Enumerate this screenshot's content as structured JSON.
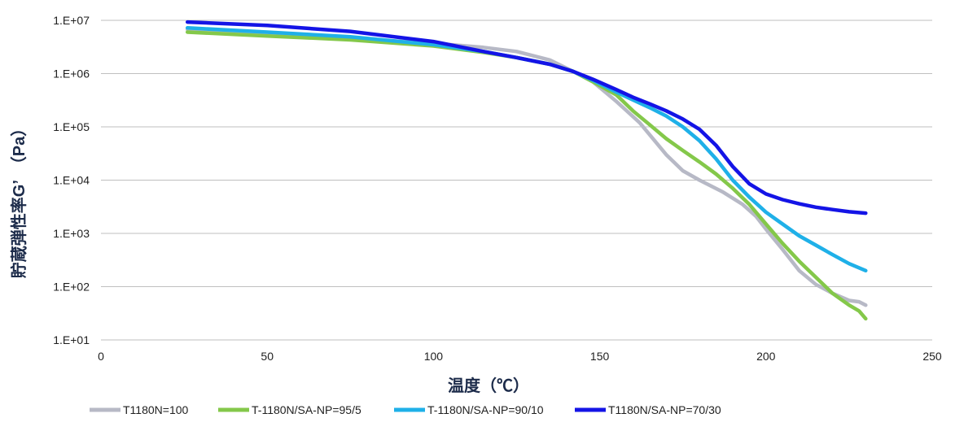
{
  "chart_data": {
    "type": "line",
    "title": "",
    "xlabel": "温度（℃）",
    "ylabel": "貯蔵弾性率G’　（Pa）",
    "xlim": [
      0,
      250
    ],
    "xticks": [
      0,
      50,
      100,
      150,
      200,
      250
    ],
    "xtick_labels": [
      "0",
      "50",
      "100",
      "150",
      "200",
      "250"
    ],
    "ylim_log10": [
      1,
      7
    ],
    "yscale": "log",
    "ytick_labels": [
      "1.E+01",
      "1.E+02",
      "1.E+03",
      "1.E+04",
      "1.E+05",
      "1.E+06",
      "1.E+07"
    ],
    "grid": true,
    "legend_position": "bottom",
    "series": [
      {
        "name": "T1180N=100",
        "color": "#b7b9c6",
        "points": [
          [
            26,
            6700000
          ],
          [
            50,
            5600000
          ],
          [
            75,
            4600000
          ],
          [
            100,
            3700000
          ],
          [
            115,
            3100000
          ],
          [
            125,
            2600000
          ],
          [
            135,
            1800000
          ],
          [
            142,
            1100000
          ],
          [
            148,
            700000
          ],
          [
            155,
            300000
          ],
          [
            162,
            120000
          ],
          [
            170,
            30000
          ],
          [
            175,
            15000
          ],
          [
            180,
            10000
          ],
          [
            187,
            6000
          ],
          [
            193,
            3500
          ],
          [
            197,
            2100
          ],
          [
            200,
            1200
          ],
          [
            205,
            500
          ],
          [
            210,
            200
          ],
          [
            215,
            110
          ],
          [
            220,
            75
          ],
          [
            225,
            55
          ],
          [
            228,
            52
          ],
          [
            230,
            45
          ]
        ]
      },
      {
        "name": "T-1180N/SA-NP=95/5",
        "color": "#84c84a",
        "points": [
          [
            26,
            6000000
          ],
          [
            50,
            5100000
          ],
          [
            75,
            4300000
          ],
          [
            100,
            3300000
          ],
          [
            115,
            2500000
          ],
          [
            125,
            2000000
          ],
          [
            135,
            1500000
          ],
          [
            142,
            1100000
          ],
          [
            148,
            700000
          ],
          [
            155,
            400000
          ],
          [
            160,
            200000
          ],
          [
            165,
            110000
          ],
          [
            170,
            60000
          ],
          [
            175,
            36000
          ],
          [
            180,
            22000
          ],
          [
            185,
            13000
          ],
          [
            190,
            7000
          ],
          [
            195,
            3500
          ],
          [
            200,
            1500
          ],
          [
            205,
            650
          ],
          [
            210,
            300
          ],
          [
            215,
            150
          ],
          [
            220,
            75
          ],
          [
            225,
            45
          ],
          [
            228,
            35
          ],
          [
            230,
            25
          ]
        ]
      },
      {
        "name": "T-1180N/SA-NP=90/10",
        "color": "#1fb0e8",
        "points": [
          [
            26,
            7200000
          ],
          [
            50,
            6000000
          ],
          [
            75,
            4900000
          ],
          [
            100,
            3500000
          ],
          [
            115,
            2600000
          ],
          [
            125,
            2000000
          ],
          [
            135,
            1500000
          ],
          [
            142,
            1100000
          ],
          [
            148,
            750000
          ],
          [
            155,
            450000
          ],
          [
            160,
            320000
          ],
          [
            165,
            230000
          ],
          [
            170,
            160000
          ],
          [
            175,
            100000
          ],
          [
            180,
            55000
          ],
          [
            185,
            25000
          ],
          [
            190,
            10000
          ],
          [
            195,
            4800
          ],
          [
            200,
            2500
          ],
          [
            205,
            1500
          ],
          [
            210,
            900
          ],
          [
            215,
            600
          ],
          [
            220,
            400
          ],
          [
            225,
            270
          ],
          [
            230,
            200
          ]
        ]
      },
      {
        "name": "T1180N/SA-NP=70/30",
        "color": "#1414e6",
        "points": [
          [
            26,
            9300000
          ],
          [
            50,
            8000000
          ],
          [
            75,
            6200000
          ],
          [
            100,
            4000000
          ],
          [
            115,
            2600000
          ],
          [
            125,
            2000000
          ],
          [
            135,
            1500000
          ],
          [
            142,
            1100000
          ],
          [
            148,
            780000
          ],
          [
            155,
            500000
          ],
          [
            160,
            360000
          ],
          [
            165,
            270000
          ],
          [
            170,
            200000
          ],
          [
            175,
            140000
          ],
          [
            180,
            90000
          ],
          [
            185,
            45000
          ],
          [
            190,
            18000
          ],
          [
            195,
            8500
          ],
          [
            200,
            5500
          ],
          [
            205,
            4300
          ],
          [
            210,
            3600
          ],
          [
            215,
            3100
          ],
          [
            220,
            2800
          ],
          [
            225,
            2550
          ],
          [
            230,
            2400
          ]
        ]
      }
    ]
  }
}
